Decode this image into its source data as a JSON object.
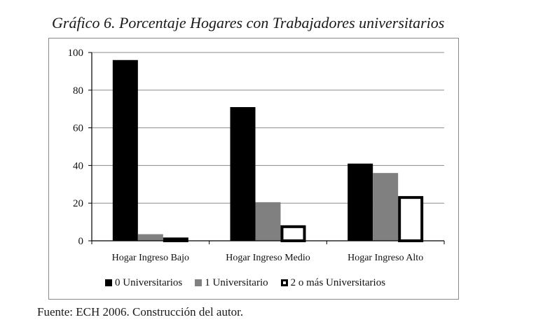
{
  "title": "Gráfico 6. Porcentaje Hogares con Trabajadores universitarios",
  "source": "Fuente: ECH 2006. Construcción del autor.",
  "chart_data": {
    "type": "bar",
    "categories": [
      "Hogar Ingreso Bajo",
      "Hogar Ingreso Medio",
      "Hogar Ingreso Alto"
    ],
    "series": [
      {
        "name": "0 Universitarios",
        "values": [
          96,
          71,
          41
        ],
        "color": "#000000",
        "fill": "solid"
      },
      {
        "name": "1 Universitario",
        "values": [
          3.5,
          20.5,
          36
        ],
        "color": "#808080",
        "fill": "solid"
      },
      {
        "name": "2 o más Universitarios",
        "values": [
          1,
          7.5,
          23
        ],
        "color": "#000000",
        "fill": "outline"
      }
    ],
    "ylim": [
      0,
      100
    ],
    "yticks": [
      "0",
      "20",
      "40",
      "60",
      "80",
      "100"
    ],
    "xlabel": "",
    "ylabel": "",
    "grid": true,
    "legend": "bottom"
  }
}
